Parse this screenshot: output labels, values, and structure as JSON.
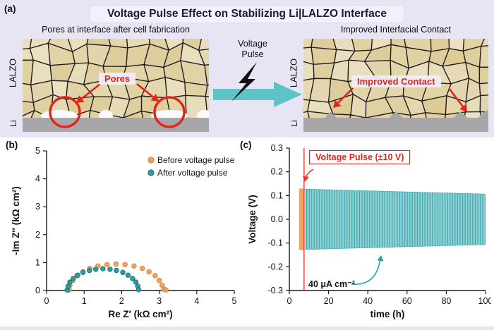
{
  "figure": {
    "background": "#e7e5f4",
    "panel_background": "#ffffff"
  },
  "panel_a": {
    "label": "(a)",
    "title": "Voltage Pulse Effect on Stabilizing Li|LALZO Interface",
    "left": {
      "caption": "Pores at interface after cell fabrication",
      "side_label": "LALZO",
      "bottom_label": "Li",
      "annotation": "Pores"
    },
    "middle": {
      "line1": "Voltage",
      "line2": "Pulse"
    },
    "right": {
      "caption": "Improved Interfacial Contact",
      "side_label": "LALZO",
      "bottom_label": "Li",
      "annotation": "Improved Contact"
    },
    "colors": {
      "arrow": "#5ec3c5",
      "grain": "#e8d49e",
      "li_metal": "#a7a7ab",
      "highlight": "#e0251a",
      "bolt": "#101010"
    }
  },
  "panel_b": {
    "label": "(b)"
  },
  "panel_c": {
    "label": "(c)"
  },
  "chart_data": [
    {
      "id": "nyquist",
      "type": "scatter",
      "xlabel": "Re Z′ (kΩ cm²)",
      "ylabel": "-Im Z″ (kΩ cm²)",
      "xlim": [
        0,
        5
      ],
      "ylim": [
        0,
        5
      ],
      "x_ticks": [
        0,
        1,
        2,
        3,
        4,
        5
      ],
      "y_ticks": [
        0,
        1,
        2,
        3,
        4,
        5
      ],
      "y_tick_decimals": 0,
      "grid": false,
      "legend_position": "top-right-inside",
      "series": [
        {
          "name": "Before voltage pulse",
          "color": "#f0a35e",
          "edge": "#c9813f",
          "points": [
            [
              0.6,
              0.02
            ],
            [
              0.62,
              0.19
            ],
            [
              0.7,
              0.36
            ],
            [
              0.81,
              0.53
            ],
            [
              0.97,
              0.67
            ],
            [
              1.15,
              0.79
            ],
            [
              1.37,
              0.88
            ],
            [
              1.61,
              0.93
            ],
            [
              1.85,
              0.95
            ],
            [
              2.09,
              0.93
            ],
            [
              2.33,
              0.88
            ],
            [
              2.55,
              0.79
            ],
            [
              2.73,
              0.67
            ],
            [
              2.89,
              0.53
            ],
            [
              3.0,
              0.36
            ],
            [
              3.08,
              0.19
            ],
            [
              3.12,
              0.05
            ],
            [
              3.18,
              0.02
            ]
          ]
        },
        {
          "name": "After voltage pulse",
          "color": "#2e9aa2",
          "edge": "#1c6d74",
          "points": [
            [
              0.55,
              0.02
            ],
            [
              0.57,
              0.15
            ],
            [
              0.62,
              0.3
            ],
            [
              0.71,
              0.43
            ],
            [
              0.83,
              0.55
            ],
            [
              0.97,
              0.65
            ],
            [
              1.14,
              0.72
            ],
            [
              1.31,
              0.76
            ],
            [
              1.5,
              0.78
            ],
            [
              1.69,
              0.76
            ],
            [
              1.86,
              0.72
            ],
            [
              2.03,
              0.65
            ],
            [
              2.17,
              0.55
            ],
            [
              2.29,
              0.43
            ],
            [
              2.38,
              0.3
            ],
            [
              2.43,
              0.15
            ],
            [
              2.45,
              0.03
            ]
          ]
        }
      ]
    },
    {
      "id": "cycling",
      "type": "line",
      "xlabel": "time (h)",
      "ylabel": "Voltage (V)",
      "xlim": [
        0,
        100
      ],
      "ylim": [
        -0.3,
        0.3
      ],
      "x_ticks": [
        0,
        20,
        40,
        60,
        80,
        100
      ],
      "y_ticks": [
        0.3,
        0.2,
        0.1,
        0.0,
        -0.1,
        -0.2,
        -0.3
      ],
      "y_tick_decimals": 1,
      "grid": false,
      "annotations": {
        "pulse": "Voltage Pulse (±10 V)",
        "current": "40 μA cm⁻²"
      },
      "pulse_line_h": 7.5,
      "pulse_line_color": "#e03a2f",
      "pre_pulse_cycling": {
        "start_h": 4.8,
        "end_h": 7.5,
        "amplitude_V": 0.128,
        "half_cycle_h": 0.34,
        "color": "#f0a35e"
      },
      "post_pulse_cycling": {
        "start_h": 7.8,
        "end_h": 100,
        "amplitude_start_V": 0.127,
        "amplitude_end_V": 0.106,
        "half_cycle_h": 0.5,
        "color": "#2aa2a8"
      }
    }
  ]
}
